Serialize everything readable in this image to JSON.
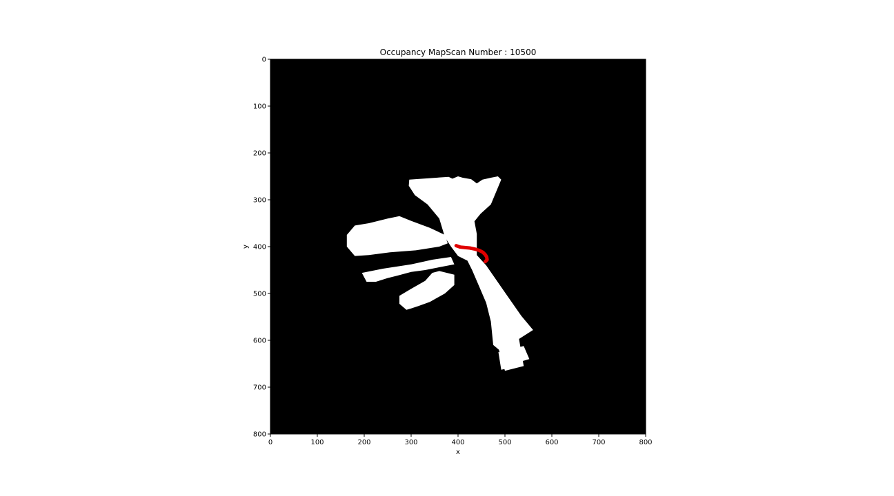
{
  "chart_data": {
    "type": "heatmap",
    "title": "Occupancy MapScan Number : 10500",
    "xlabel": "x",
    "ylabel": "y",
    "xlim": [
      0,
      800
    ],
    "ylim": [
      800,
      0
    ],
    "x_ticks": [
      "0",
      "100",
      "200",
      "300",
      "400",
      "500",
      "600",
      "700",
      "800"
    ],
    "y_ticks": [
      "0",
      "100",
      "200",
      "300",
      "400",
      "500",
      "600",
      "700",
      "800"
    ],
    "background_color": "#000000",
    "free_space_color": "#ffffff",
    "path_color": "#e00000",
    "free_space_regions": [
      [
        [
          296,
          257
        ],
        [
          380,
          251
        ],
        [
          388,
          255
        ],
        [
          400,
          250
        ],
        [
          410,
          253
        ],
        [
          428,
          256
        ],
        [
          440,
          265
        ],
        [
          452,
          257
        ],
        [
          470,
          253
        ],
        [
          485,
          250
        ],
        [
          492,
          257
        ],
        [
          470,
          310
        ],
        [
          448,
          330
        ],
        [
          435,
          346
        ],
        [
          440,
          373
        ],
        [
          440,
          418
        ],
        [
          460,
          440
        ],
        [
          505,
          505
        ],
        [
          535,
          548
        ],
        [
          560,
          578
        ],
        [
          530,
          597
        ],
        [
          540,
          655
        ],
        [
          500,
          665
        ],
        [
          487,
          620
        ],
        [
          475,
          610
        ],
        [
          470,
          560
        ],
        [
          460,
          520
        ],
        [
          445,
          485
        ],
        [
          430,
          450
        ],
        [
          420,
          430
        ],
        [
          400,
          420
        ],
        [
          385,
          400
        ],
        [
          372,
          380
        ],
        [
          360,
          340
        ],
        [
          335,
          310
        ],
        [
          308,
          290
        ],
        [
          295,
          270
        ]
      ],
      [
        [
          163,
          375
        ],
        [
          180,
          355
        ],
        [
          210,
          350
        ],
        [
          250,
          340
        ],
        [
          275,
          335
        ],
        [
          300,
          345
        ],
        [
          340,
          360
        ],
        [
          372,
          375
        ],
        [
          378,
          393
        ],
        [
          360,
          400
        ],
        [
          310,
          408
        ],
        [
          255,
          412
        ],
        [
          210,
          418
        ],
        [
          180,
          420
        ],
        [
          163,
          400
        ]
      ],
      [
        [
          195,
          456
        ],
        [
          240,
          447
        ],
        [
          300,
          438
        ],
        [
          345,
          428
        ],
        [
          385,
          422
        ],
        [
          392,
          438
        ],
        [
          370,
          442
        ],
        [
          330,
          450
        ],
        [
          300,
          454
        ],
        [
          270,
          462
        ],
        [
          250,
          467
        ],
        [
          225,
          475
        ],
        [
          205,
          475
        ]
      ],
      [
        [
          275,
          505
        ],
        [
          300,
          490
        ],
        [
          330,
          473
        ],
        [
          345,
          456
        ],
        [
          360,
          452
        ],
        [
          392,
          460
        ],
        [
          392,
          482
        ],
        [
          372,
          500
        ],
        [
          340,
          518
        ],
        [
          315,
          527
        ],
        [
          300,
          532
        ],
        [
          290,
          535
        ],
        [
          275,
          522
        ]
      ],
      [
        [
          486,
          625
        ],
        [
          502,
          628
        ],
        [
          506,
          660
        ],
        [
          492,
          663
        ]
      ],
      [
        [
          510,
          620
        ],
        [
          540,
          612
        ],
        [
          552,
          640
        ],
        [
          525,
          648
        ]
      ]
    ],
    "robot_path": [
      [
        396,
        398
      ],
      [
        405,
        401
      ],
      [
        415,
        402
      ],
      [
        425,
        403
      ],
      [
        435,
        405
      ],
      [
        445,
        408
      ],
      [
        453,
        412
      ],
      [
        458,
        417
      ],
      [
        461,
        422
      ],
      [
        462,
        428
      ],
      [
        458,
        432
      ]
    ]
  }
}
